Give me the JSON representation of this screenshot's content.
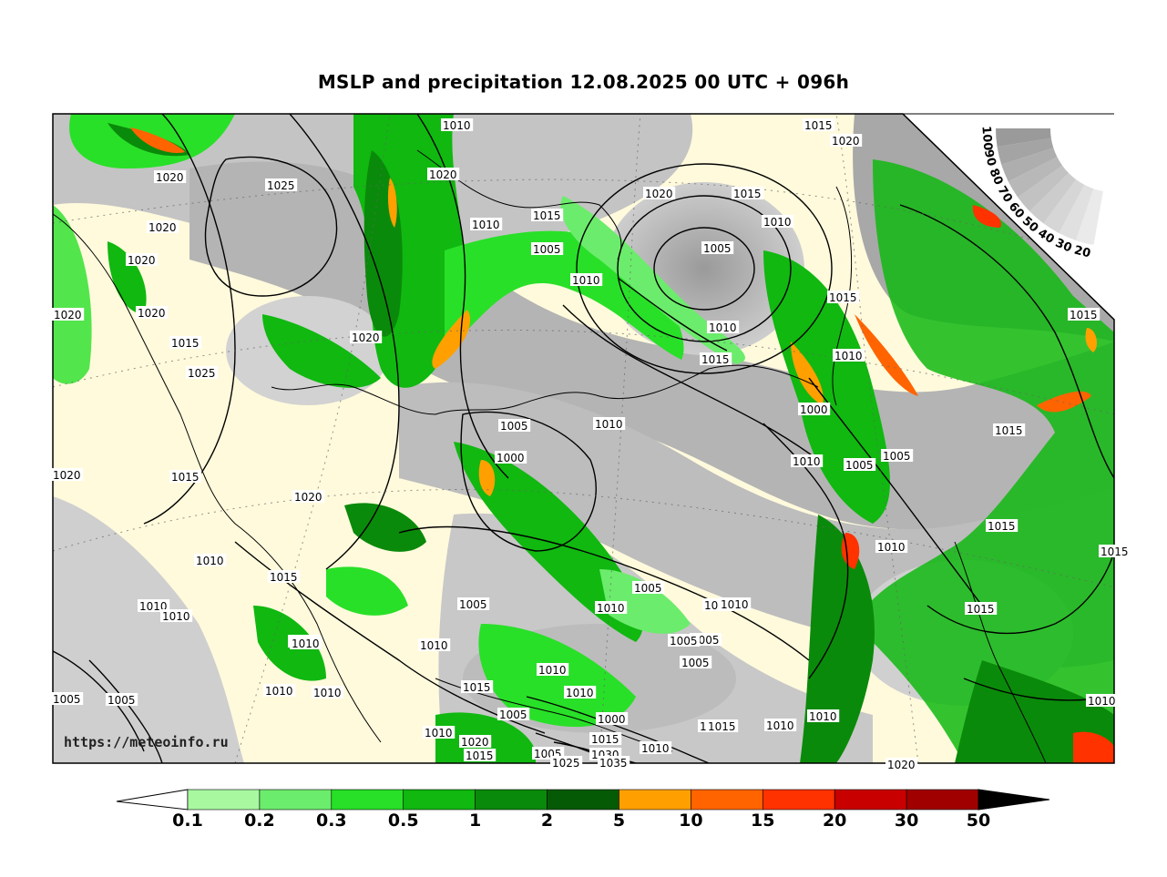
{
  "title": "MSLP and precipitation 12.08.2025 00 UTC + 096h",
  "watermark": "https://meteoinfo.ru",
  "colorbar": {
    "ticks": [
      "0.1",
      "0.2",
      "0.3",
      "0.5",
      "1",
      "2",
      "5",
      "10",
      "15",
      "20",
      "30",
      "50"
    ],
    "colors": [
      "#a8f8a0",
      "#6cec6c",
      "#28e028",
      "#10b810",
      "#0a8a0a",
      "#055a05",
      "#ffa000",
      "#ff6400",
      "#ff3200",
      "#c80000",
      "#a00000",
      "#000000"
    ]
  },
  "cloud_legend": {
    "ticks": [
      "100",
      "90",
      "80",
      "70",
      "60",
      "50",
      "40",
      "30",
      "20"
    ]
  },
  "isobar_labels": [
    {
      "text": "1010"
    },
    {
      "text": "1015"
    },
    {
      "text": "1020"
    },
    {
      "text": "1020"
    },
    {
      "text": "1025"
    },
    {
      "text": "1020"
    },
    {
      "text": "1020"
    },
    {
      "text": "1020"
    },
    {
      "text": "1020"
    },
    {
      "text": "1020"
    },
    {
      "text": "1010"
    },
    {
      "text": "1015"
    },
    {
      "text": "1005"
    },
    {
      "text": "1010"
    },
    {
      "text": "1020"
    },
    {
      "text": "1015"
    },
    {
      "text": "1010"
    },
    {
      "text": "1005"
    },
    {
      "text": "1010"
    },
    {
      "text": "1015"
    },
    {
      "text": "1020"
    },
    {
      "text": "1015"
    },
    {
      "text": "1015"
    },
    {
      "text": "1010"
    },
    {
      "text": "1000"
    },
    {
      "text": "1015"
    },
    {
      "text": "1010"
    },
    {
      "text": "1005"
    },
    {
      "text": "1000"
    },
    {
      "text": "1010"
    },
    {
      "text": "1005"
    },
    {
      "text": "1005"
    },
    {
      "text": "1015"
    },
    {
      "text": "1015"
    },
    {
      "text": "1020"
    },
    {
      "text": "1015"
    },
    {
      "text": "1020"
    },
    {
      "text": "1025"
    },
    {
      "text": "1015"
    },
    {
      "text": "1010"
    },
    {
      "text": "1015"
    },
    {
      "text": "1010"
    },
    {
      "text": "1005"
    },
    {
      "text": "1010"
    },
    {
      "text": "1005"
    },
    {
      "text": "1010"
    },
    {
      "text": "1015"
    },
    {
      "text": "1010"
    },
    {
      "text": "1010"
    },
    {
      "text": "1005"
    },
    {
      "text": "1005"
    },
    {
      "text": "1010"
    },
    {
      "text": "1010"
    },
    {
      "text": "1010"
    },
    {
      "text": "1005"
    },
    {
      "text": "1015"
    },
    {
      "text": "1005"
    },
    {
      "text": "1005"
    },
    {
      "text": "1005"
    },
    {
      "text": "1010"
    },
    {
      "text": "1010"
    },
    {
      "text": "1005"
    },
    {
      "text": "1000"
    },
    {
      "text": "1015"
    },
    {
      "text": "1030"
    },
    {
      "text": "1035"
    },
    {
      "text": "1010"
    },
    {
      "text": "1020"
    },
    {
      "text": "1015"
    },
    {
      "text": "1010"
    },
    {
      "text": "1005"
    },
    {
      "text": "1025"
    },
    {
      "text": "1015"
    },
    {
      "text": "1010"
    },
    {
      "text": "1010"
    },
    {
      "text": "1010"
    },
    {
      "text": "1010"
    },
    {
      "text": "1020"
    },
    {
      "text": "1010"
    },
    {
      "text": "1010"
    }
  ]
}
